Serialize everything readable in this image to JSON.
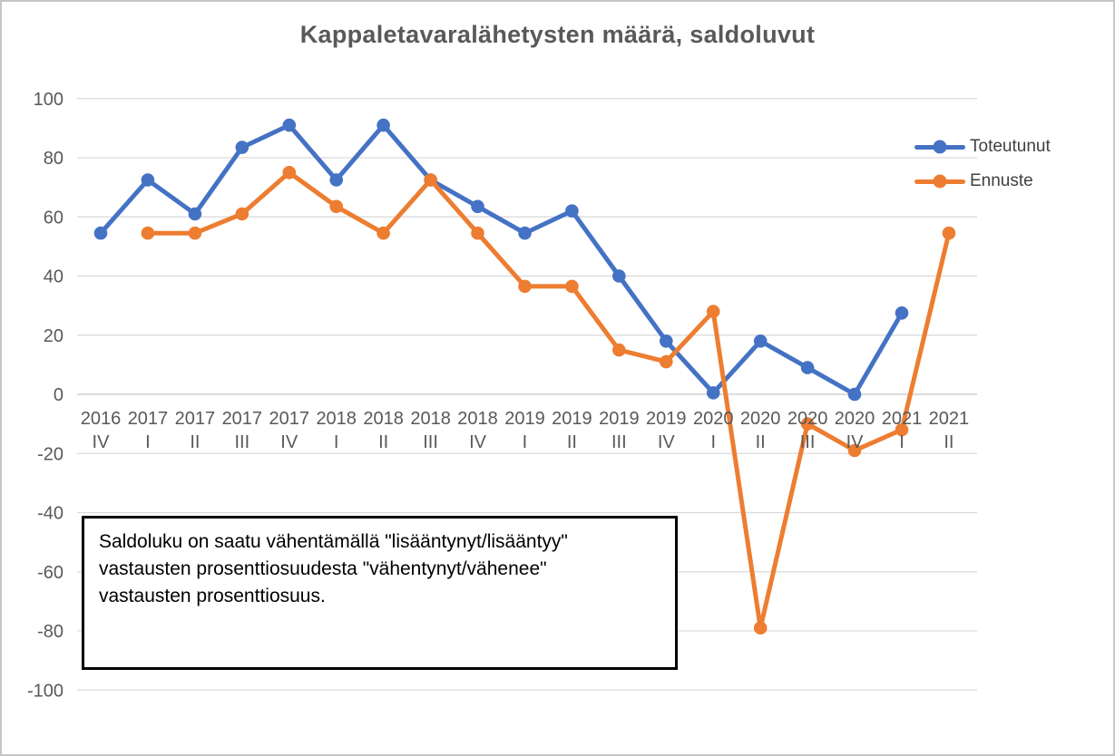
{
  "title": "Kappaletavaralähetysten määrä, saldoluvut",
  "annotation": {
    "full_text": "Saldoluku on saatu vähentämällä \"lisääntynyt/lisääntyy\" vastausten prosenttiosuudesta \"vähentynyt/vähenee\" vastausten prosenttiosuus.",
    "lines": [
      "Saldoluku on saatu vähentämällä \"lisääntynyt/lisääntyy\"",
      "vastausten prosenttiosuudesta \"vähentynyt/vähenee\"",
      "vastausten prosenttiosuus."
    ]
  },
  "colors": {
    "toteutunut": "#4472C4",
    "ennuste": "#ED7D31",
    "gridline": "#D9D9D9",
    "axis_labels": "#595959",
    "title_text": "#595959",
    "legend_text": "#404040",
    "annotation_border": "#000000",
    "frame_border": "#C7C5C5"
  },
  "chart_data": {
    "type": "line",
    "categories": [
      "2016 IV",
      "2017 I",
      "2017 II",
      "2017 III",
      "2017 IV",
      "2018 I",
      "2018 II",
      "2018 III",
      "2018 IV",
      "2019 I",
      "2019 II",
      "2019 III",
      "2019 IV",
      "2020 I",
      "2020 II",
      "2020 III",
      "2020 IV",
      "2021 I",
      "2021 II"
    ],
    "series": [
      {
        "name": "Toteutunut",
        "color": "#4472C4",
        "values": [
          54.5,
          72.5,
          61,
          83.5,
          91,
          72.5,
          91,
          72.5,
          63.5,
          54.5,
          62,
          40,
          18,
          0.5,
          18,
          9,
          0,
          27.5,
          null
        ]
      },
      {
        "name": "Ennuste",
        "color": "#ED7D31",
        "values": [
          null,
          54.5,
          54.5,
          61,
          75,
          63.5,
          54.5,
          72.5,
          54.5,
          36.5,
          36.5,
          15,
          11,
          28,
          -79,
          -10,
          -19,
          -12,
          54.5
        ]
      }
    ],
    "ylim": [
      -100,
      100
    ],
    "ytick_step": 20,
    "yticks": [
      100,
      80,
      60,
      40,
      20,
      0,
      -20,
      -40,
      -60,
      -80,
      -100
    ],
    "grid": true,
    "legend_position": "right",
    "marker": "circle"
  }
}
